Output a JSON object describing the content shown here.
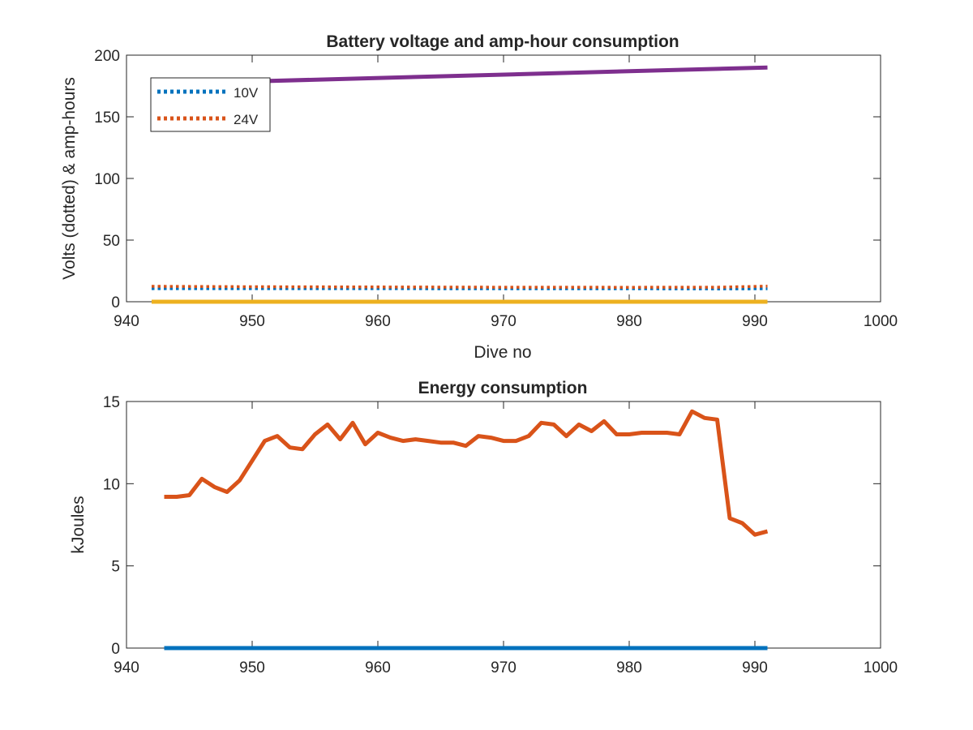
{
  "chart_data": [
    {
      "type": "line",
      "title": "Battery voltage and amp-hour consumption",
      "xlabel": "Dive no",
      "ylabel": "Volts (dotted) & amp-hours",
      "xlim": [
        940,
        1000
      ],
      "ylim": [
        0,
        200
      ],
      "xticks": [
        940,
        950,
        960,
        970,
        980,
        990,
        1000
      ],
      "yticks": [
        0,
        50,
        100,
        150,
        200
      ],
      "legend": {
        "placement": "top-left",
        "entries": [
          "10V",
          "24V"
        ]
      },
      "series": [
        {
          "name": "10V",
          "style": "dotted",
          "color": "#0072BD",
          "x": [
            942,
            950,
            960,
            970,
            980,
            987,
            991
          ],
          "y": [
            10.6,
            10.6,
            10.6,
            10.5,
            10.5,
            10.4,
            10.5
          ]
        },
        {
          "name": "24V",
          "style": "dotted",
          "color": "#D95319",
          "x": [
            942,
            950,
            960,
            970,
            980,
            987,
            991
          ],
          "y": [
            12.5,
            12.2,
            12.0,
            11.8,
            11.7,
            11.8,
            12.6
          ]
        },
        {
          "style": "solid",
          "color": "#EDB120",
          "x": [
            942,
            991
          ],
          "y": [
            0,
            0
          ]
        },
        {
          "style": "solid",
          "color": "#7E2F8E",
          "x": [
            942,
            991
          ],
          "y": [
            176.5,
            190
          ]
        }
      ]
    },
    {
      "type": "line",
      "title": "Energy consumption",
      "xlabel": "",
      "ylabel": "kJoules",
      "xlim": [
        940,
        1000
      ],
      "ylim": [
        0,
        15
      ],
      "xticks": [
        940,
        950,
        960,
        970,
        980,
        990,
        1000
      ],
      "yticks": [
        0,
        5,
        10,
        15
      ],
      "series": [
        {
          "style": "solid",
          "color": "#0072BD",
          "x": [
            943,
            991
          ],
          "y": [
            0,
            0
          ]
        },
        {
          "style": "solid",
          "color": "#D95319",
          "x": [
            943,
            944,
            945,
            946,
            947,
            948,
            949,
            950,
            951,
            952,
            953,
            954,
            955,
            956,
            957,
            958,
            959,
            960,
            961,
            962,
            963,
            964,
            965,
            966,
            967,
            968,
            969,
            970,
            971,
            972,
            973,
            974,
            975,
            976,
            977,
            978,
            979,
            980,
            981,
            982,
            983,
            984,
            985,
            986,
            987,
            988,
            989,
            990,
            991
          ],
          "y": [
            9.2,
            9.2,
            9.3,
            10.3,
            9.8,
            9.5,
            10.2,
            11.4,
            12.6,
            12.9,
            12.2,
            12.1,
            13.0,
            13.6,
            12.7,
            13.7,
            12.4,
            13.1,
            12.8,
            12.6,
            12.7,
            12.6,
            12.5,
            12.5,
            12.3,
            12.9,
            12.8,
            12.6,
            12.6,
            12.9,
            13.7,
            13.6,
            12.9,
            13.6,
            13.2,
            13.8,
            13.0,
            13.0,
            13.1,
            13.1,
            13.1,
            13.0,
            14.4,
            14.0,
            13.9,
            7.9,
            7.6,
            6.9,
            7.1
          ]
        }
      ]
    }
  ]
}
